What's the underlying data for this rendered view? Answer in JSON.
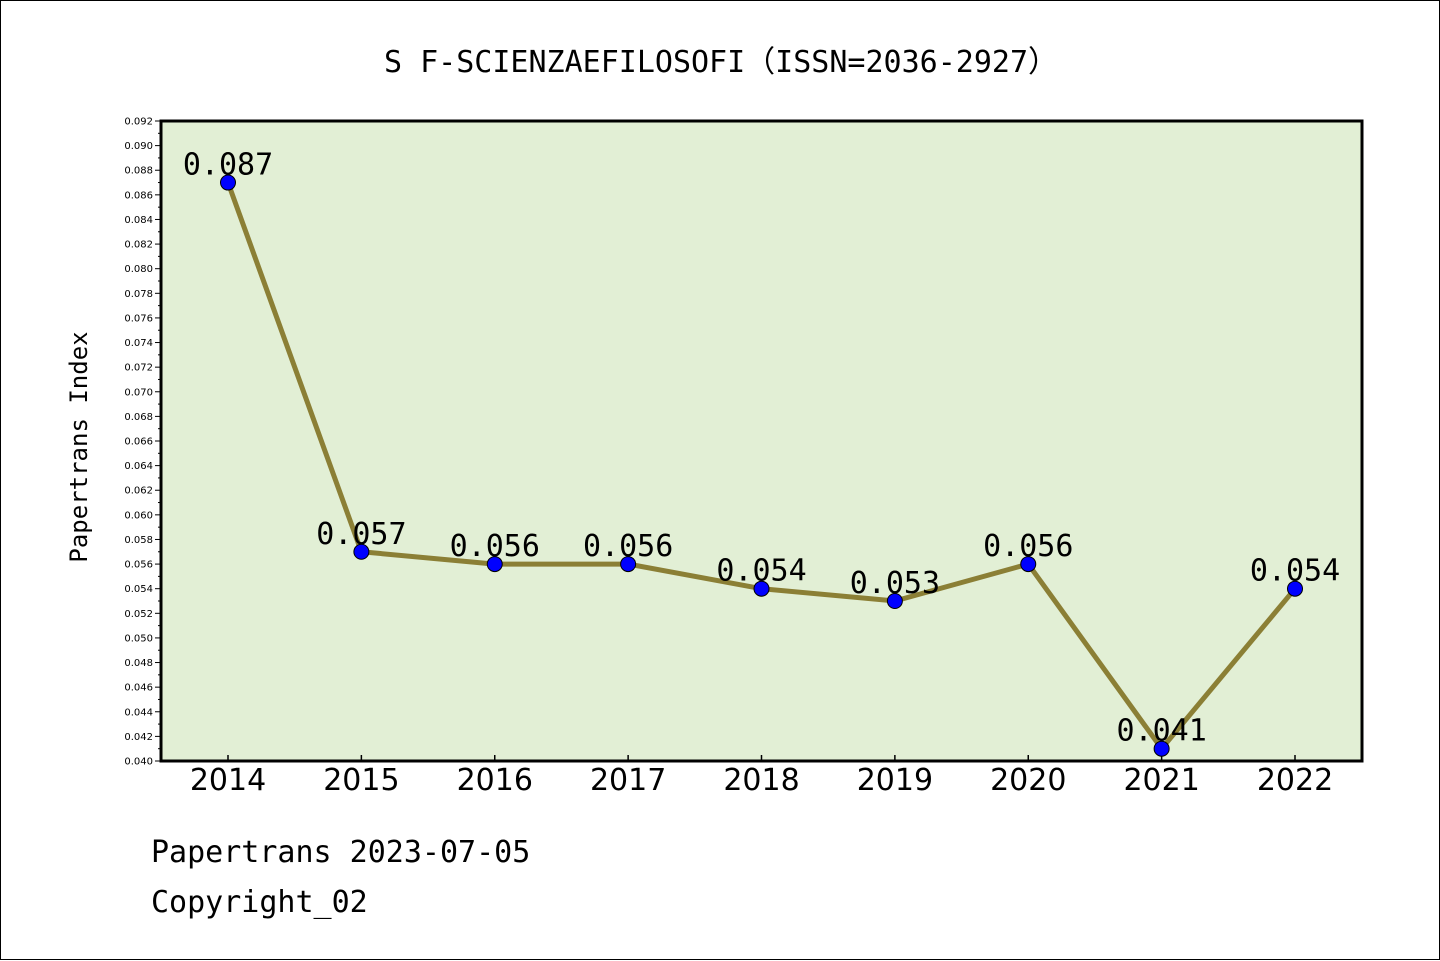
{
  "chart_data": {
    "type": "line",
    "title": "S F-SCIENZAEFILOSOFI（ISSN=2036-2927）",
    "xlabel": "",
    "ylabel": "Papertrans Index",
    "categories": [
      "2014",
      "2015",
      "2016",
      "2017",
      "2018",
      "2019",
      "2020",
      "2021",
      "2022"
    ],
    "values": [
      0.087,
      0.057,
      0.056,
      0.056,
      0.054,
      0.053,
      0.056,
      0.041,
      0.054
    ],
    "ylim": [
      0.04,
      0.092
    ],
    "ytick_step": 0.002,
    "grid": false,
    "plot_background": "#e2efd5",
    "line_color": "#8b7f35",
    "marker_color": "#0000ff"
  },
  "footer": {
    "line1": "Papertrans 2023-07-05",
    "line2": "Copyright_02"
  }
}
